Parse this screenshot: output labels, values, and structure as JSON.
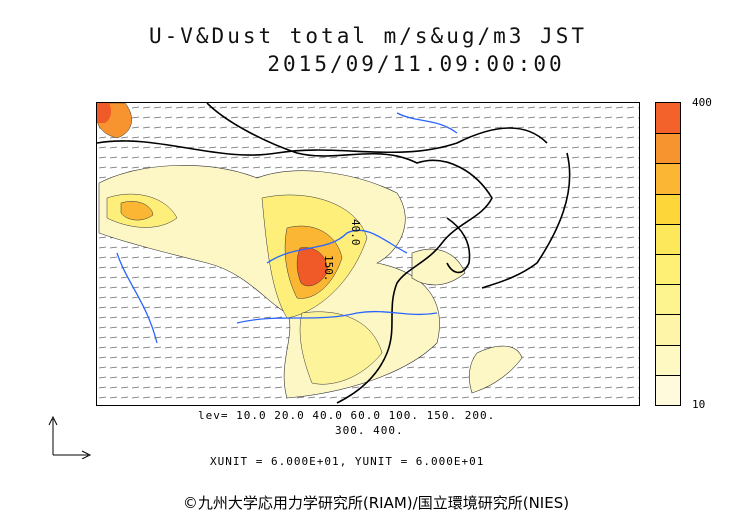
{
  "title": {
    "line1": "U-V&Dust total m/s&ug/m3 JST",
    "line2": "2015/09/11.09:00:00"
  },
  "colorbar": {
    "max_label": "400",
    "min_label": "10",
    "colors": [
      "#f2622a",
      "#f7942f",
      "#fbb634",
      "#fdd63a",
      "#fde85c",
      "#fdf074",
      "#fdf38f",
      "#fef5a8",
      "#fef8c3",
      "#fefadb"
    ]
  },
  "levels": {
    "line1": "lev= 10.0 20.0 40.0 60.0 100. 150. 200.",
    "line2": "300. 400."
  },
  "units": "XUNIT = 6.000E+01, YUNIT = 6.000E+01",
  "credit": "©九州大学応用力学研究所(RIAM)/国立環境研究所(NIES)",
  "map": {
    "contour_labels": [
      "40.0",
      "150."
    ],
    "colors": {
      "land_outline": "#000000",
      "rivers": "#2a64ff",
      "dust_low": "#fdf7c6",
      "dust_mid": "#fde86a",
      "dust_high": "#f7942f",
      "dust_peak": "#ef5a28"
    }
  }
}
